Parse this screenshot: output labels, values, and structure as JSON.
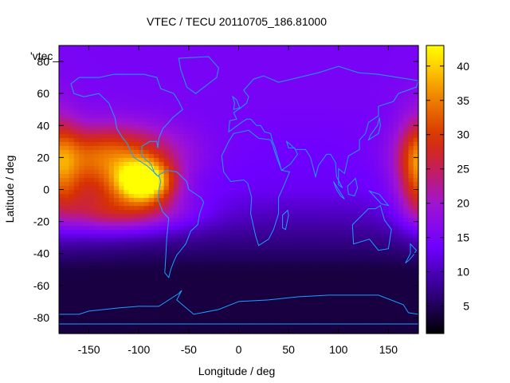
{
  "chart_data": {
    "type": "heatmap",
    "title": "VTEC / TECU 20110705_186.81000",
    "xlabel": "Longitude / deg",
    "ylabel": "Latitude / deg",
    "key_label": "'vtec_",
    "xlim": [
      -180,
      180
    ],
    "ylim": [
      -90,
      90
    ],
    "x_ticks": [
      -150,
      -100,
      -50,
      0,
      50,
      100,
      150
    ],
    "y_ticks": [
      -80,
      -60,
      -40,
      -20,
      0,
      20,
      40,
      60,
      80
    ],
    "colorbar": {
      "range": [
        1,
        43
      ],
      "ticks": [
        5,
        10,
        15,
        20,
        25,
        30,
        35,
        40
      ],
      "palette": "black-purple-red-orange-yellow"
    },
    "grid_spacing": {
      "lon": 5,
      "lat": 2.5
    },
    "features": [
      {
        "name": "equatorial anomaly (Americas)",
        "lon": -95,
        "lat": 5,
        "sigma_lon": 20,
        "sigma_lat": 9,
        "amp": 31
      },
      {
        "name": "southern crest (Pacific)",
        "lon": -110,
        "lat": -14,
        "sigma_lon": 45,
        "sigma_lat": 9,
        "amp": 13
      },
      {
        "name": "northern crest (Pacific)",
        "lon": -120,
        "lat": 22,
        "sigma_lon": 45,
        "sigma_lat": 13,
        "amp": 16
      },
      {
        "name": "dateline band",
        "lon": 180,
        "lat": 15,
        "sigma_lon": 14,
        "sigma_lat": 22,
        "amp": 14
      },
      {
        "name": "Pacific band",
        "lon": -150,
        "lat": 5,
        "sigma_lon": 30,
        "sigma_lat": 20,
        "amp": 8
      }
    ],
    "background": {
      "equator_tec": 13,
      "north_tec": 15,
      "south_tec": 4
    },
    "continents": [
      {
        "name": "North America",
        "points": [
          [
            -168,
            66
          ],
          [
            -160,
            70
          ],
          [
            -140,
            70
          ],
          [
            -125,
            72
          ],
          [
            -110,
            72
          ],
          [
            -95,
            72
          ],
          [
            -82,
            70
          ],
          [
            -78,
            63
          ],
          [
            -65,
            60
          ],
          [
            -60,
            55
          ],
          [
            -56,
            50
          ],
          [
            -66,
            45
          ],
          [
            -70,
            42
          ],
          [
            -76,
            38
          ],
          [
            -80,
            32
          ],
          [
            -81,
            26
          ],
          [
            -82,
            30
          ],
          [
            -89,
            30
          ],
          [
            -97,
            27
          ],
          [
            -97,
            21
          ],
          [
            -92,
            18
          ],
          [
            -88,
            16
          ],
          [
            -84,
            10
          ],
          [
            -80,
            8
          ],
          [
            -85,
            11
          ],
          [
            -92,
            15
          ],
          [
            -105,
            20
          ],
          [
            -112,
            29
          ],
          [
            -117,
            33
          ],
          [
            -122,
            38
          ],
          [
            -124,
            45
          ],
          [
            -130,
            54
          ],
          [
            -140,
            60
          ],
          [
            -155,
            58
          ],
          [
            -165,
            60
          ]
        ]
      },
      {
        "name": "South America",
        "points": [
          [
            -80,
            9
          ],
          [
            -72,
            12
          ],
          [
            -62,
            11
          ],
          [
            -52,
            5
          ],
          [
            -50,
            0
          ],
          [
            -38,
            -5
          ],
          [
            -35,
            -8
          ],
          [
            -39,
            -15
          ],
          [
            -41,
            -22
          ],
          [
            -48,
            -26
          ],
          [
            -53,
            -34
          ],
          [
            -58,
            -38
          ],
          [
            -62,
            -41
          ],
          [
            -65,
            -45
          ],
          [
            -68,
            -50
          ],
          [
            -70,
            -55
          ],
          [
            -74,
            -52
          ],
          [
            -73,
            -42
          ],
          [
            -72,
            -30
          ],
          [
            -70,
            -18
          ],
          [
            -76,
            -14
          ],
          [
            -81,
            -6
          ],
          [
            -80,
            0
          ],
          [
            -78,
            5
          ]
        ]
      },
      {
        "name": "Europe-Asia",
        "points": [
          [
            -10,
            36
          ],
          [
            -9,
            43
          ],
          [
            -2,
            44
          ],
          [
            -5,
            48
          ],
          [
            2,
            51
          ],
          [
            8,
            54
          ],
          [
            10,
            58
          ],
          [
            5,
            62
          ],
          [
            15,
            69
          ],
          [
            25,
            71
          ],
          [
            40,
            67
          ],
          [
            60,
            70
          ],
          [
            80,
            73
          ],
          [
            100,
            77
          ],
          [
            120,
            73
          ],
          [
            140,
            72
          ],
          [
            160,
            70
          ],
          [
            180,
            68
          ],
          [
            178,
            64
          ],
          [
            160,
            60
          ],
          [
            155,
            55
          ],
          [
            140,
            52
          ],
          [
            140,
            46
          ],
          [
            130,
            42
          ],
          [
            127,
            35
          ],
          [
            121,
            31
          ],
          [
            121,
            25
          ],
          [
            110,
            21
          ],
          [
            106,
            10
          ],
          [
            100,
            13
          ],
          [
            100,
            3
          ],
          [
            104,
            1
          ],
          [
            98,
            8
          ],
          [
            97,
            17
          ],
          [
            92,
            22
          ],
          [
            88,
            22
          ],
          [
            80,
            15
          ],
          [
            77,
            8
          ],
          [
            72,
            20
          ],
          [
            67,
            25
          ],
          [
            57,
            25
          ],
          [
            52,
            28
          ],
          [
            48,
            30
          ],
          [
            50,
            26
          ],
          [
            56,
            26
          ],
          [
            59,
            22
          ],
          [
            52,
            16
          ],
          [
            43,
            12
          ],
          [
            36,
            27
          ],
          [
            34,
            30
          ],
          [
            32,
            35
          ],
          [
            26,
            36
          ],
          [
            22,
            40
          ],
          [
            18,
            40
          ],
          [
            12,
            44
          ],
          [
            8,
            44
          ],
          [
            3,
            42
          ]
        ]
      },
      {
        "name": "Africa",
        "points": [
          [
            -17,
            21
          ],
          [
            -10,
            30
          ],
          [
            -5,
            35
          ],
          [
            10,
            37
          ],
          [
            20,
            32
          ],
          [
            32,
            31
          ],
          [
            34,
            28
          ],
          [
            38,
            20
          ],
          [
            43,
            12
          ],
          [
            51,
            11
          ],
          [
            45,
            2
          ],
          [
            40,
            -5
          ],
          [
            40,
            -15
          ],
          [
            35,
            -25
          ],
          [
            30,
            -31
          ],
          [
            20,
            -35
          ],
          [
            17,
            -29
          ],
          [
            12,
            -15
          ],
          [
            13,
            -5
          ],
          [
            9,
            4
          ],
          [
            5,
            6
          ],
          [
            -8,
            5
          ],
          [
            -15,
            11
          ]
        ]
      },
      {
        "name": "Australia",
        "points": [
          [
            114,
            -22
          ],
          [
            122,
            -17
          ],
          [
            130,
            -12
          ],
          [
            137,
            -12
          ],
          [
            142,
            -10
          ],
          [
            146,
            -19
          ],
          [
            153,
            -25
          ],
          [
            150,
            -37
          ],
          [
            140,
            -38
          ],
          [
            131,
            -31
          ],
          [
            115,
            -34
          ]
        ]
      },
      {
        "name": "Greenland",
        "points": [
          [
            -60,
            82
          ],
          [
            -30,
            83
          ],
          [
            -20,
            76
          ],
          [
            -22,
            70
          ],
          [
            -43,
            60
          ],
          [
            -52,
            64
          ],
          [
            -58,
            75
          ]
        ]
      },
      {
        "name": "Antarctica",
        "points": [
          [
            -180,
            -84
          ],
          [
            -180,
            -78
          ],
          [
            -160,
            -78
          ],
          [
            -150,
            -76
          ],
          [
            -120,
            -74
          ],
          [
            -100,
            -73
          ],
          [
            -80,
            -73
          ],
          [
            -60,
            -65
          ],
          [
            -57,
            -63
          ],
          [
            -62,
            -69
          ],
          [
            -45,
            -78
          ],
          [
            -20,
            -75
          ],
          [
            0,
            -70
          ],
          [
            30,
            -69
          ],
          [
            60,
            -67
          ],
          [
            90,
            -66
          ],
          [
            120,
            -66
          ],
          [
            140,
            -66
          ],
          [
            165,
            -72
          ],
          [
            170,
            -77
          ],
          [
            180,
            -78
          ],
          [
            180,
            -84
          ]
        ]
      },
      {
        "name": "Madagascar",
        "points": [
          [
            44,
            -16
          ],
          [
            49,
            -13
          ],
          [
            50,
            -16
          ],
          [
            47,
            -25
          ],
          [
            44,
            -24
          ]
        ]
      },
      {
        "name": "UK",
        "points": [
          [
            -5,
            50
          ],
          [
            1,
            51
          ],
          [
            -2,
            56
          ],
          [
            -6,
            58
          ],
          [
            -4,
            54
          ]
        ]
      },
      {
        "name": "Japan",
        "points": [
          [
            130,
            31
          ],
          [
            140,
            35
          ],
          [
            142,
            40
          ],
          [
            141,
            45
          ],
          [
            139,
            40
          ],
          [
            132,
            34
          ]
        ]
      },
      {
        "name": "New Zealand",
        "points": [
          [
            172,
            -34
          ],
          [
            178,
            -38
          ],
          [
            175,
            -41
          ],
          [
            171,
            -44
          ],
          [
            167,
            -46
          ],
          [
            172,
            -40
          ]
        ]
      },
      {
        "name": "Borneo",
        "points": [
          [
            109,
            2
          ],
          [
            117,
            7
          ],
          [
            119,
            1
          ],
          [
            116,
            -4
          ],
          [
            110,
            -3
          ]
        ]
      },
      {
        "name": "Sumatra",
        "points": [
          [
            95,
            5
          ],
          [
            106,
            -6
          ],
          [
            102,
            -4
          ],
          [
            98,
            0
          ]
        ]
      },
      {
        "name": "New Guinea",
        "points": [
          [
            131,
            -1
          ],
          [
            141,
            -3
          ],
          [
            150,
            -10
          ],
          [
            143,
            -9
          ],
          [
            137,
            -5
          ]
        ]
      }
    ]
  }
}
